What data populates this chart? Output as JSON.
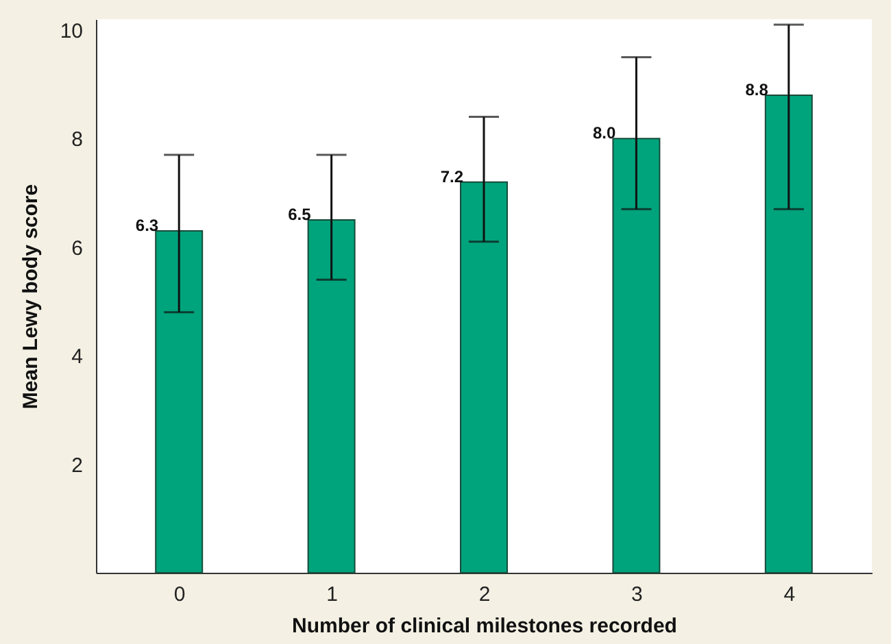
{
  "chart_data": {
    "type": "bar",
    "xlabel": "Number of clinical milestones recorded",
    "ylabel": "Mean Lewy body score",
    "categories": [
      "0",
      "1",
      "2",
      "3",
      "4"
    ],
    "values": [
      6.3,
      6.5,
      7.2,
      8.0,
      8.8
    ],
    "errors": [
      [
        4.8,
        7.7
      ],
      [
        5.4,
        7.7
      ],
      [
        6.1,
        8.4
      ],
      [
        6.7,
        9.5
      ],
      [
        6.7,
        10.1
      ]
    ],
    "color": "#00a47c",
    "value_labels": [
      "6.3",
      "6.5",
      "7.2",
      "8.0",
      "8.8"
    ],
    "ylim": [
      0,
      10.2
    ],
    "yticks": [
      2,
      4,
      6,
      8,
      10
    ],
    "grid": false
  }
}
